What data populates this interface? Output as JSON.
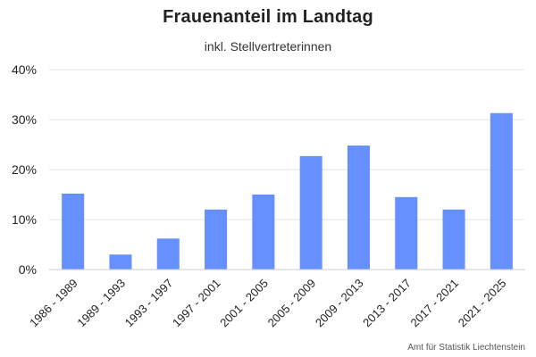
{
  "chart_data": {
    "type": "bar",
    "title": "Frauenanteil im Landtag",
    "subtitle": "inkl. Stellvertreterinnen",
    "categories": [
      "1986 - 1989",
      "1989 - 1993",
      "1993 - 1997",
      "1997 - 2001",
      "2001 - 2005",
      "2005 - 2009",
      "2009 - 2013",
      "2013 - 2017",
      "2017 - 2021",
      "2021 - 2025"
    ],
    "values": [
      15.2,
      3.0,
      6.2,
      12.0,
      15.0,
      22.7,
      24.8,
      14.5,
      12.0,
      31.3
    ],
    "y_unit": "%",
    "ylim": [
      0,
      40
    ],
    "yticks": [
      0,
      10,
      20,
      30,
      40
    ],
    "ytick_labels": [
      "0%",
      "10%",
      "20%",
      "30%",
      "40%"
    ],
    "grid": true,
    "bar_color": "#6690ff",
    "credit": "Amt für Statistik Liechtenstein"
  }
}
